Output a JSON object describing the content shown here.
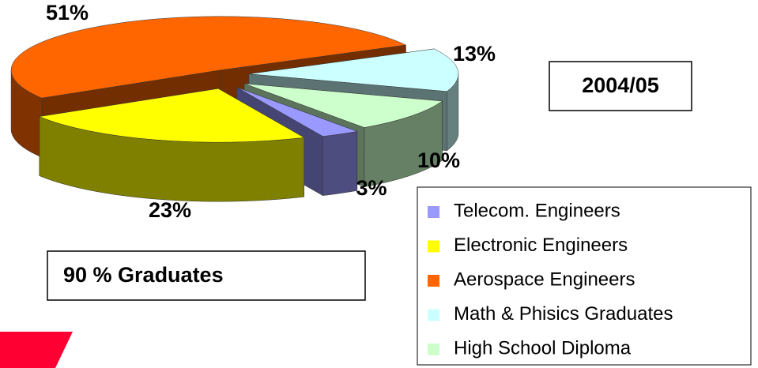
{
  "chart_data": {
    "type": "pie3d",
    "period": "2004/05",
    "note": "90 % Graduates",
    "categories": [
      "Telecom. Engineers",
      "Electronic Engineers",
      "Aerospace Engineers",
      "Math & Phisics Graduates",
      "High School Diploma"
    ],
    "values": [
      3,
      23,
      51,
      13,
      10
    ],
    "value_labels": [
      "3%",
      "23%",
      "51%",
      "13%",
      "10%"
    ],
    "colors": [
      "#9999ff",
      "#ffff00",
      "#ff6600",
      "#ccffff",
      "#ccffcc"
    ]
  }
}
